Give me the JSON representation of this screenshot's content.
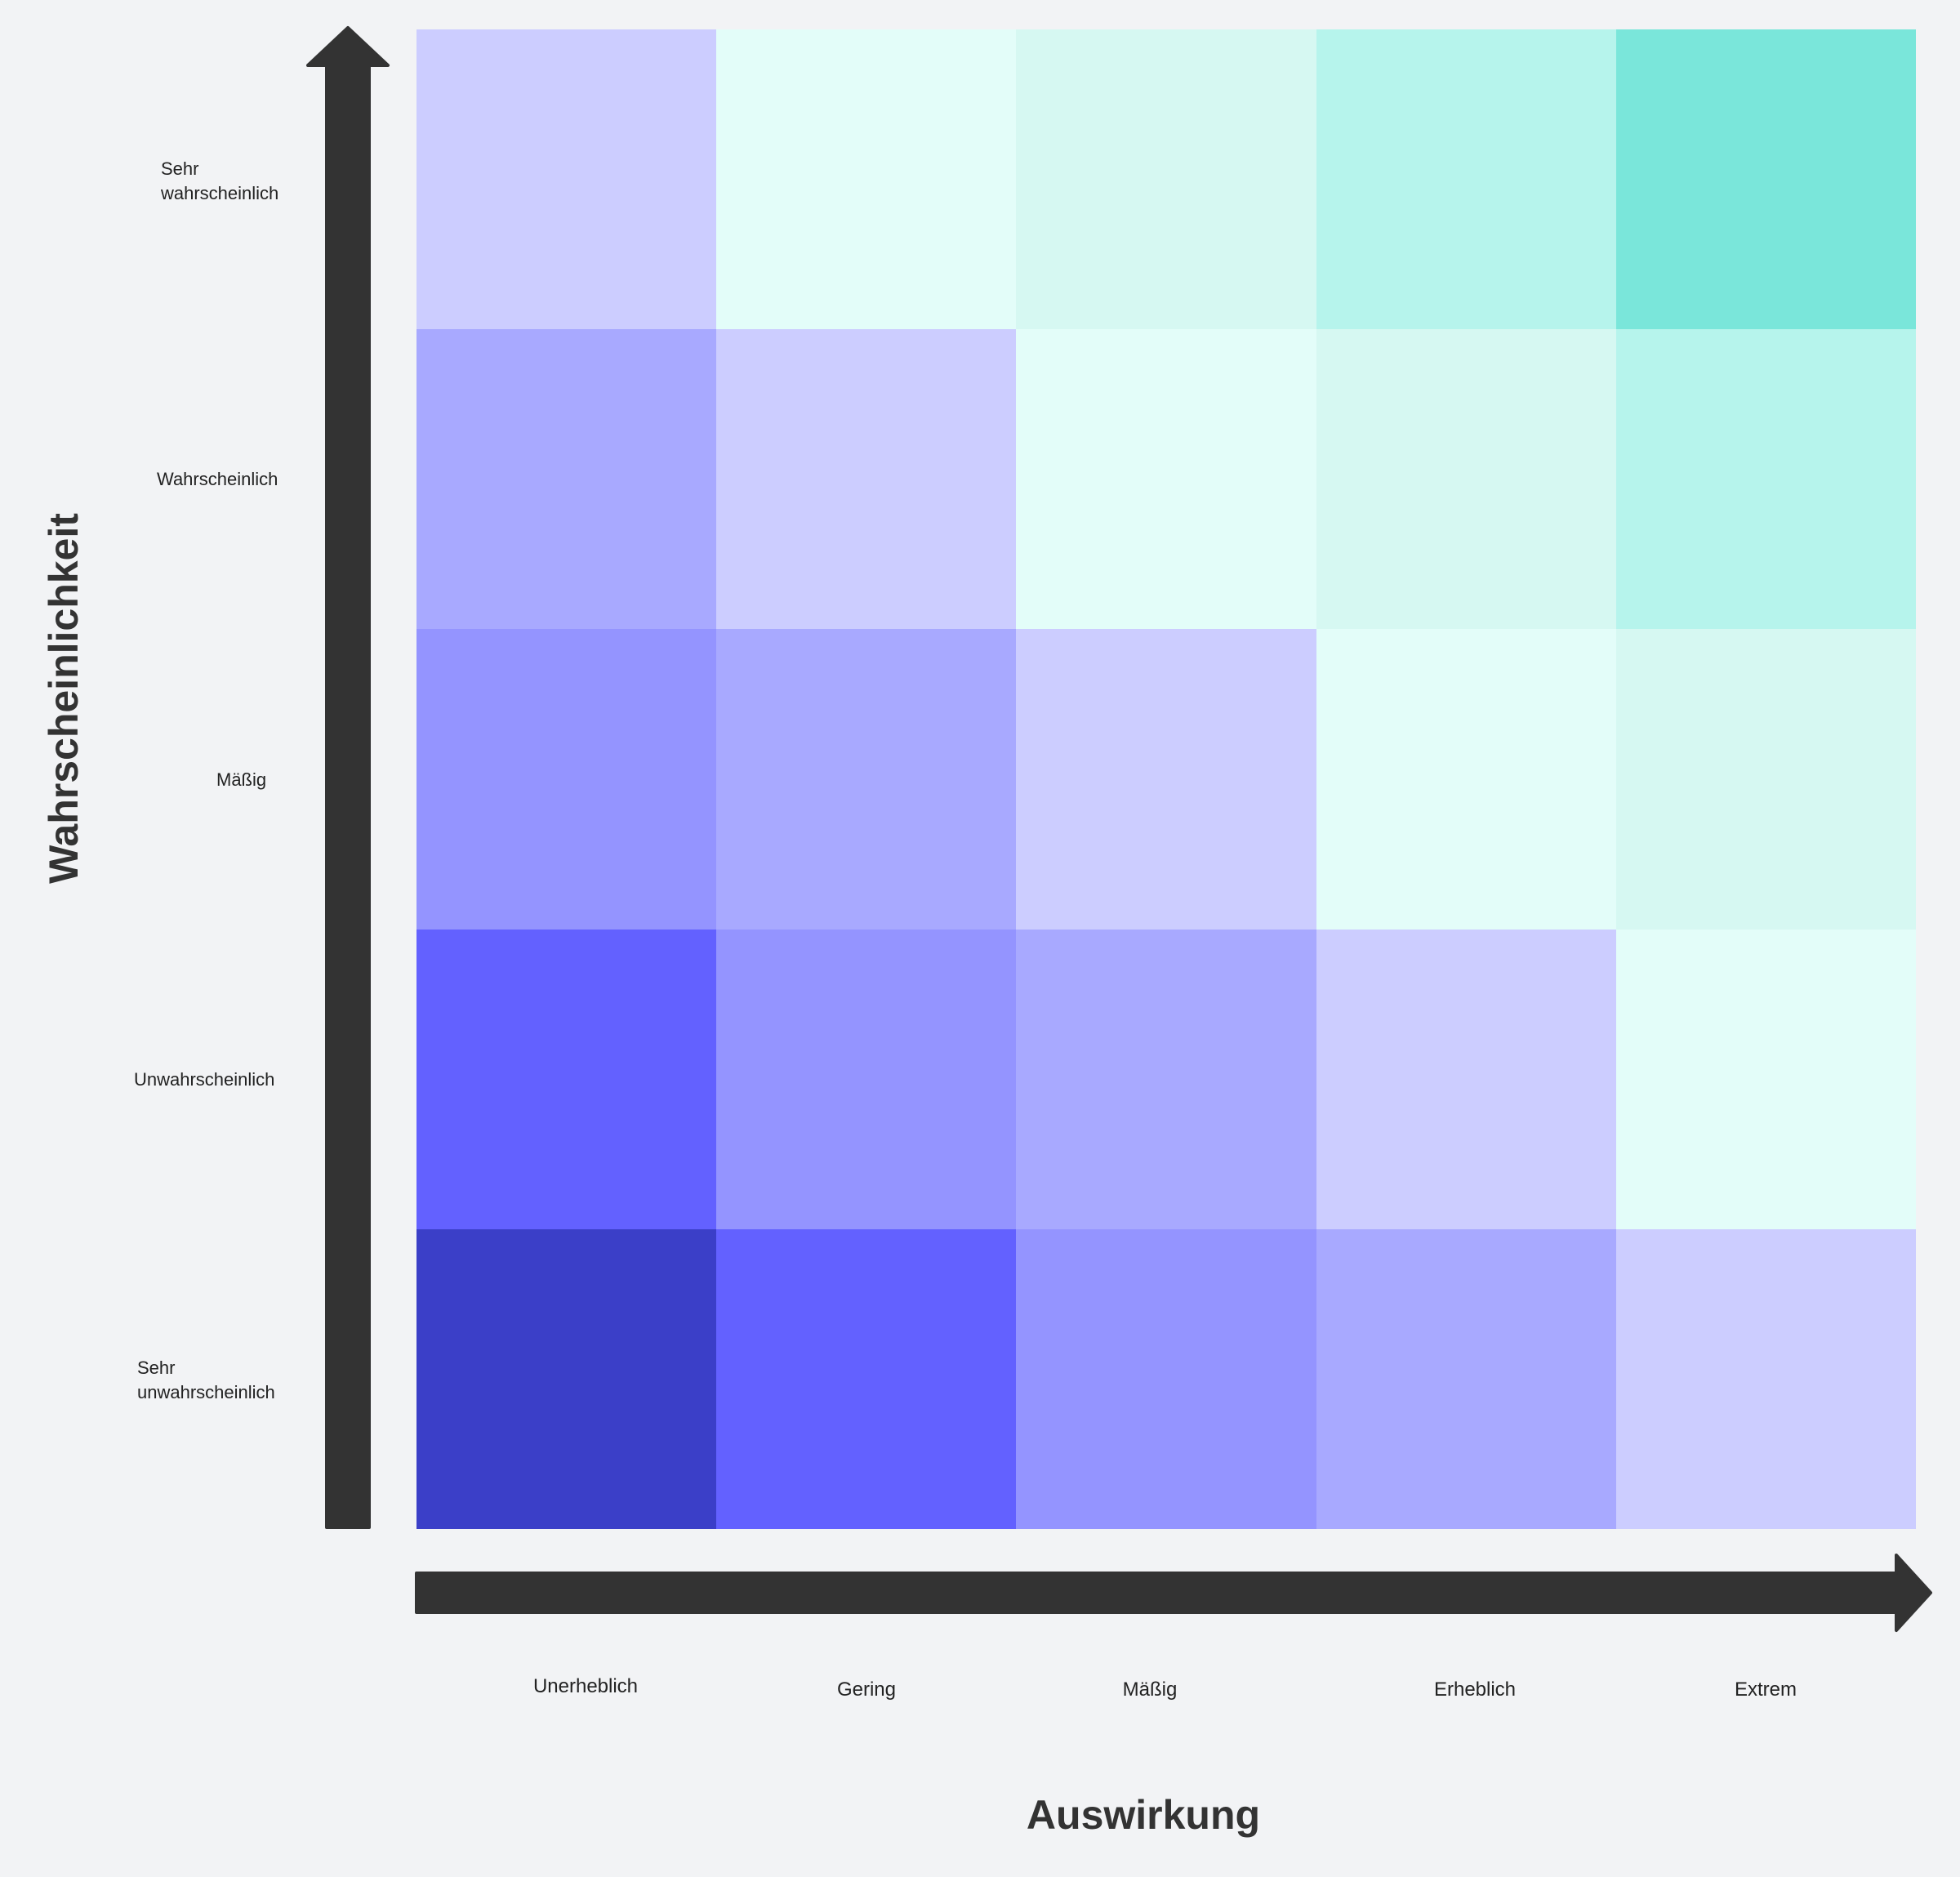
{
  "y_axis": {
    "title": "Wahrscheinlichkeit",
    "levels": [
      "Sehr wahrscheinlich",
      "Wahrscheinlich",
      "Mäßig",
      "Unwahrscheinlich",
      "Sehr unwahrscheinlich"
    ]
  },
  "x_axis": {
    "title": "Auswirkung",
    "levels": [
      "Unerheblich",
      "Gering",
      "Mäßig",
      "Erheblich",
      "Extrem"
    ]
  },
  "matrix": {
    "rows": [
      [
        "#cccdff",
        "#e3fdf9",
        "#d6f8f2",
        "#b6f4ec",
        "#7ae6da"
      ],
      [
        "#a8a9ff",
        "#cccdff",
        "#e3fdf9",
        "#d6f8f2",
        "#b6f4ec"
      ],
      [
        "#9494ff",
        "#a8a9ff",
        "#cccdff",
        "#e3fdf9",
        "#d6f8f2"
      ],
      [
        "#6361ff",
        "#9494ff",
        "#a8a9ff",
        "#cccdff",
        "#e3fdf9"
      ],
      [
        "#3b3fc8",
        "#6361ff",
        "#9494ff",
        "#a8a9ff",
        "#cccdff"
      ]
    ]
  },
  "colors": {
    "arrow": "#333333",
    "background": "#f2f3f5"
  }
}
